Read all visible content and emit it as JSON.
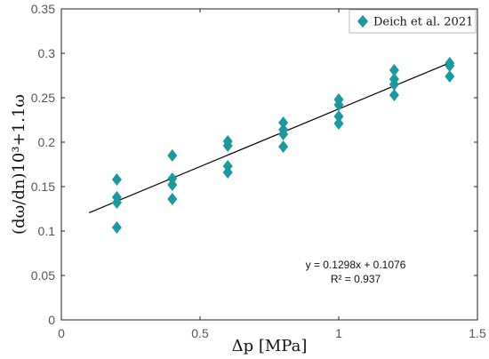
{
  "chart_data": {
    "type": "scatter",
    "xlabel": "Δp [MPa]",
    "ylabel": "(dω/dn)10³+1.1ω",
    "xlim": [
      0,
      1.5
    ],
    "ylim": [
      0,
      0.35
    ],
    "xticks": [
      "0",
      "0.5",
      "1",
      "1.5"
    ],
    "yticks": [
      "0",
      "0.05",
      "0.1",
      "0.15",
      "0.2",
      "0.25",
      "0.3",
      "0.35"
    ],
    "grid": false,
    "legend_position": "top-right",
    "series": [
      {
        "name": "Deich et al. 2021",
        "color": "#1a9aa0",
        "marker": "diamond",
        "x": [
          0.2,
          0.2,
          0.2,
          0.2,
          0.4,
          0.4,
          0.4,
          0.4,
          0.6,
          0.6,
          0.6,
          0.6,
          0.8,
          0.8,
          0.8,
          0.8,
          1.0,
          1.0,
          1.0,
          1.0,
          1.2,
          1.2,
          1.2,
          1.2,
          1.4,
          1.4,
          1.4
        ],
        "y": [
          0.158,
          0.138,
          0.132,
          0.104,
          0.185,
          0.159,
          0.152,
          0.136,
          0.201,
          0.196,
          0.173,
          0.166,
          0.222,
          0.214,
          0.209,
          0.195,
          0.248,
          0.242,
          0.229,
          0.221,
          0.281,
          0.271,
          0.265,
          0.253,
          0.289,
          0.286,
          0.274
        ]
      }
    ],
    "fit": {
      "slope": 0.1298,
      "intercept": 0.1076,
      "x_range": [
        0.1,
        1.4
      ],
      "color": "#000000",
      "equation": "y = 0.1298x + 0.1076",
      "r2_label": "R² = 0.937"
    }
  }
}
